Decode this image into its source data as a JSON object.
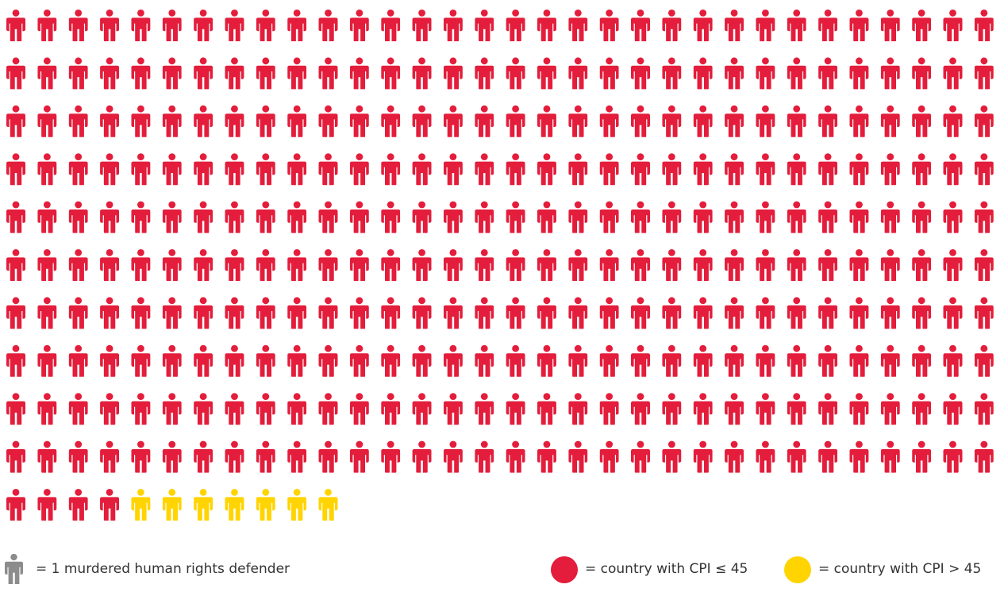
{
  "chart_data": {
    "type": "pictogram",
    "unit_label": "= 1 murdered human rights defender",
    "icons_per_row": 32,
    "series": [
      {
        "label": "= country with CPI ≤ 45",
        "count": 324,
        "color": "#e31d3b"
      },
      {
        "label": "= country with CPI > 45",
        "count": 7,
        "color": "#ffd400"
      }
    ],
    "unit_icon_color": "#8c8c8c"
  }
}
